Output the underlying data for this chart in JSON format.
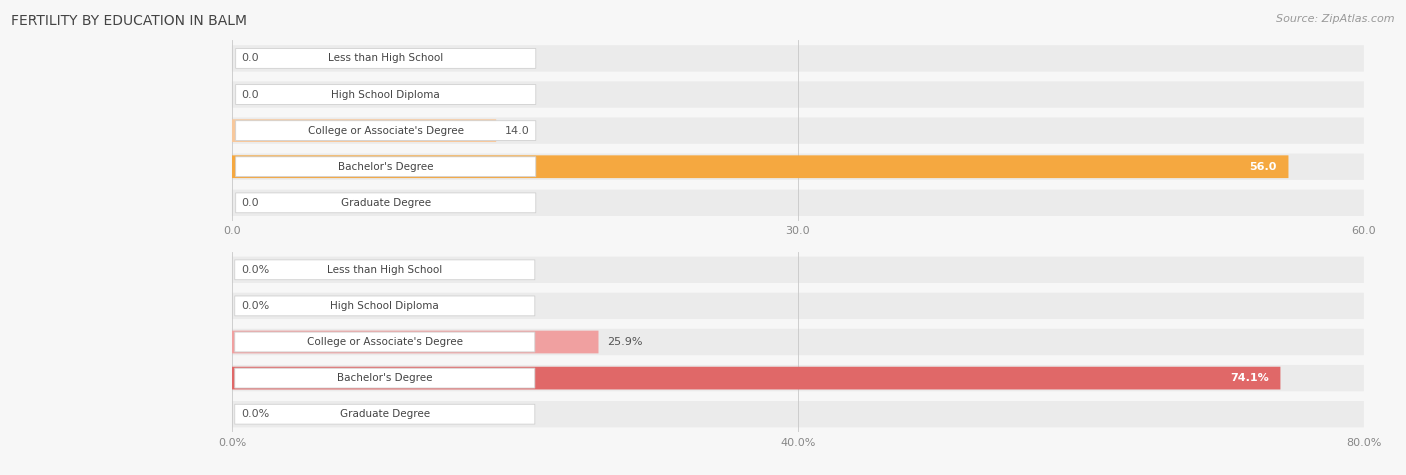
{
  "title": "FERTILITY BY EDUCATION IN BALM",
  "source": "Source: ZipAtlas.com",
  "top_chart": {
    "categories": [
      "Less than High School",
      "High School Diploma",
      "College or Associate's Degree",
      "Bachelor's Degree",
      "Graduate Degree"
    ],
    "values": [
      0.0,
      0.0,
      14.0,
      56.0,
      0.0
    ],
    "xlim": [
      0,
      60
    ],
    "xticks": [
      0.0,
      30.0,
      60.0
    ],
    "xtick_labels": [
      "0.0",
      "30.0",
      "60.0"
    ],
    "bar_color_normal": "#f7c89c",
    "bar_color_highlight": "#f5a840",
    "highlight_index": 3
  },
  "bottom_chart": {
    "categories": [
      "Less than High School",
      "High School Diploma",
      "College or Associate's Degree",
      "Bachelor's Degree",
      "Graduate Degree"
    ],
    "values": [
      0.0,
      0.0,
      25.9,
      74.1,
      0.0
    ],
    "xlim": [
      0,
      80
    ],
    "xticks": [
      0.0,
      40.0,
      80.0
    ],
    "xtick_labels": [
      "0.0%",
      "40.0%",
      "80.0%"
    ],
    "bar_color_normal": "#f0a0a0",
    "bar_color_highlight": "#e06868",
    "highlight_index": 3
  },
  "bg_color": "#f7f7f7",
  "row_bg_color": "#ebebeb",
  "title_font_size": 10,
  "source_font_size": 8,
  "bar_label_font_size": 8,
  "cat_label_font_size": 7.5
}
